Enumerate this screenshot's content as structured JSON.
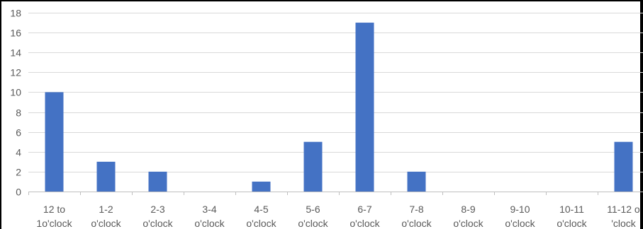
{
  "chart_data": {
    "type": "bar",
    "title": "",
    "xlabel": "",
    "ylabel": "",
    "categories": [
      [
        "12 to",
        "1o'clock"
      ],
      [
        "1-2",
        "o'clock"
      ],
      [
        "2-3",
        "o'clock"
      ],
      [
        "3-4",
        "o'clock"
      ],
      [
        "4-5",
        "o'clock"
      ],
      [
        "5-6",
        "o'clock"
      ],
      [
        "6-7",
        "o'clock"
      ],
      [
        "7-8",
        "o'clock"
      ],
      [
        "8-9",
        "o'clock"
      ],
      [
        "9-10",
        "o'clock"
      ],
      [
        "10-11",
        "o'clock"
      ],
      [
        "11-12 o",
        "'clock"
      ]
    ],
    "values": [
      10,
      3,
      2,
      0,
      1,
      5,
      17,
      2,
      0,
      0,
      0,
      5
    ],
    "ylim": [
      0,
      18
    ],
    "yticks": [
      0,
      2,
      4,
      6,
      8,
      10,
      12,
      14,
      16,
      18
    ],
    "grid": true,
    "legend": "none",
    "colors": {
      "bar": "#4472C4",
      "grid": "#D9D9D9",
      "axis": "#BFBFBF",
      "text": "#595959",
      "frame": "#000000"
    }
  }
}
